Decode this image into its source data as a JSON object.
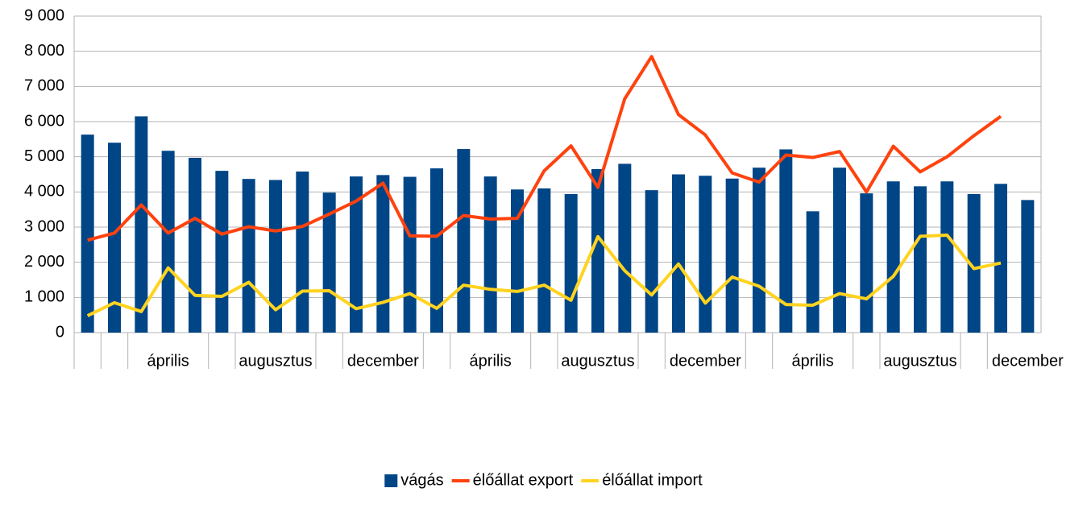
{
  "chart_data": {
    "type": "bar_line",
    "categories": [
      null,
      null,
      null,
      "április",
      null,
      null,
      null,
      "augusztus",
      null,
      null,
      null,
      "december",
      null,
      null,
      null,
      "április",
      null,
      null,
      null,
      "augusztus",
      null,
      null,
      null,
      "december",
      null,
      null,
      null,
      "április",
      null,
      null,
      null,
      "augusztus",
      null,
      null,
      null,
      "december"
    ],
    "series": [
      {
        "name": "vágás",
        "type": "bar",
        "color": "#004586",
        "values": [
          5630,
          5400,
          6150,
          5170,
          4970,
          4600,
          4370,
          4340,
          4580,
          3980,
          4440,
          4480,
          4430,
          4670,
          5220,
          4440,
          4070,
          4100,
          3940,
          4650,
          4800,
          4050,
          4500,
          4460,
          4380,
          4690,
          5210,
          3450,
          4690,
          3960,
          4300,
          4160,
          4300,
          3940,
          4230,
          3770
        ]
      },
      {
        "name": "élőállat export",
        "type": "line",
        "color": "#ff420e",
        "values": [
          2630,
          2830,
          3630,
          2830,
          3250,
          2800,
          3010,
          2890,
          3020,
          3370,
          3740,
          4250,
          2750,
          2740,
          3330,
          3230,
          3250,
          4600,
          5310,
          4130,
          6650,
          7850,
          6200,
          5620,
          4540,
          4280,
          5050,
          4980,
          5150,
          4000,
          5300,
          4570,
          5000,
          5600,
          6150,
          null
        ]
      },
      {
        "name": "élőállat import",
        "type": "line",
        "color": "#ffd320",
        "values": [
          480,
          850,
          600,
          1840,
          1060,
          1030,
          1430,
          650,
          1180,
          1190,
          680,
          860,
          1110,
          690,
          1350,
          1230,
          1170,
          1350,
          920,
          2730,
          1760,
          1070,
          1950,
          840,
          1580,
          1320,
          800,
          780,
          1110,
          960,
          1600,
          2740,
          2770,
          1820,
          1980,
          null
        ]
      }
    ],
    "ylim": [
      0,
      9000
    ],
    "yticks": [
      0,
      {
        "value": 1000,
        "label": "1 000"
      },
      {
        "value": 2000,
        "label": "2 000"
      },
      {
        "value": 3000,
        "label": "3 000"
      },
      {
        "value": 4000,
        "label": "4 000"
      },
      {
        "value": 5000,
        "label": "5 000"
      },
      {
        "value": 6000,
        "label": "6 000"
      },
      {
        "value": 7000,
        "label": "7 000"
      },
      {
        "value": 8000,
        "label": "8 000"
      },
      {
        "value": 9000,
        "label": "9 000"
      }
    ],
    "grid": true,
    "legend": "bottom"
  }
}
